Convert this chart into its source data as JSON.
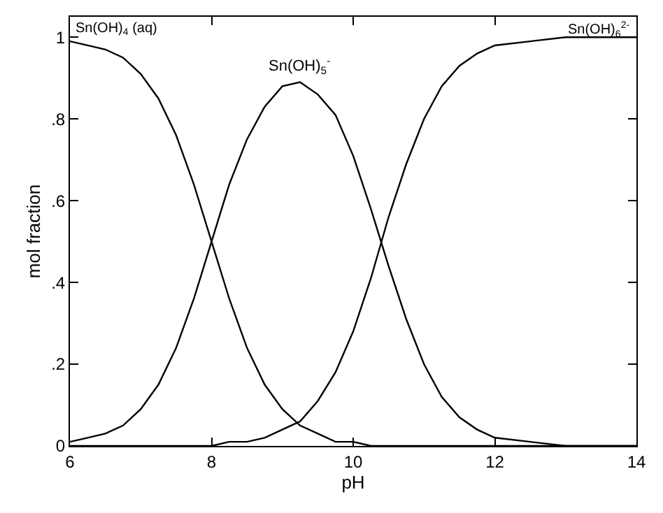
{
  "chart_data": {
    "type": "line",
    "xlabel": "pH",
    "ylabel": "mol fraction",
    "x": [
      6,
      6.25,
      6.5,
      6.75,
      7,
      7.25,
      7.5,
      7.75,
      8,
      8.25,
      8.5,
      8.75,
      9,
      9.25,
      9.5,
      9.75,
      10,
      10.25,
      10.5,
      10.75,
      11,
      11.25,
      11.5,
      11.75,
      12,
      12.5,
      13,
      13.5,
      14
    ],
    "series": [
      {
        "name": "Sn(OH)$_{4}$ (aq)",
        "color": "#000000",
        "values": [
          0.99,
          0.98,
          0.97,
          0.95,
          0.91,
          0.85,
          0.76,
          0.64,
          0.5,
          0.36,
          0.24,
          0.15,
          0.09,
          0.05,
          0.03,
          0.01,
          0.01,
          0,
          0,
          0,
          0,
          0,
          0,
          0,
          0,
          0,
          0,
          0,
          0
        ]
      },
      {
        "name": "Sn(OH)$_{5}$$^{-}$",
        "color": "#000000",
        "values": [
          0.01,
          0.02,
          0.03,
          0.05,
          0.09,
          0.15,
          0.24,
          0.36,
          0.5,
          0.64,
          0.75,
          0.83,
          0.88,
          0.89,
          0.86,
          0.81,
          0.71,
          0.58,
          0.44,
          0.31,
          0.2,
          0.12,
          0.07,
          0.04,
          0.02,
          0.01,
          0,
          0,
          0
        ]
      },
      {
        "name": "Sn(OH)$_{6}$$^{2-}$",
        "color": "#000000",
        "values": [
          0,
          0,
          0,
          0,
          0,
          0,
          0,
          0,
          0,
          0.01,
          0.01,
          0.02,
          0.04,
          0.06,
          0.11,
          0.18,
          0.28,
          0.41,
          0.56,
          0.69,
          0.8,
          0.88,
          0.93,
          0.96,
          0.98,
          0.99,
          1,
          1,
          1
        ]
      }
    ],
    "xlim": [
      6,
      14
    ],
    "xticks": [
      6,
      8,
      10,
      12,
      14
    ],
    "ylim": [
      0,
      1.05
    ],
    "yticks": [
      0,
      {
        "value": 0.2,
        "label": ".2"
      },
      {
        "value": 0.4,
        "label": ".4"
      },
      {
        "value": 0.6,
        "label": ".6"
      },
      {
        "value": 0.8,
        "label": ".8"
      },
      1
    ],
    "marker": "none",
    "line_style": "solid"
  }
}
